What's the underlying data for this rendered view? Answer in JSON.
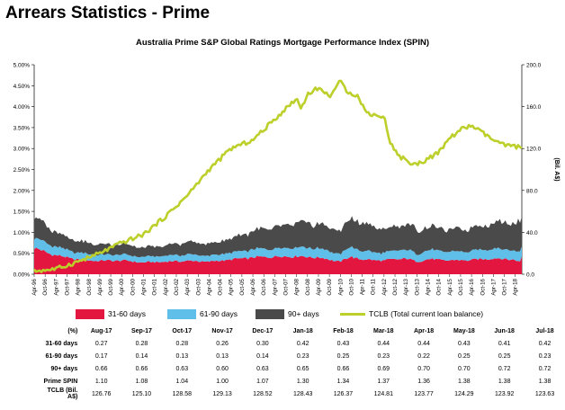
{
  "page": {
    "title": "Arrears Statistics - Prime"
  },
  "chart_data": {
    "type": "area",
    "title": "Australia Prime S&P Global Ratings Mortgage Performance Index (SPIN)",
    "y_left": {
      "ticks": [
        "0.00%",
        "0.50%",
        "1.00%",
        "1.50%",
        "2.00%",
        "2.50%",
        "3.00%",
        "3.50%",
        "4.00%",
        "4.50%",
        "5.00%"
      ],
      "range": [
        0,
        5
      ]
    },
    "y_right": {
      "label": "(Bil. A$)",
      "ticks": [
        "0.0",
        "40.0",
        "80.0",
        "120.0",
        "160.0",
        "200.0"
      ],
      "range": [
        0,
        200
      ]
    },
    "x_tick_labels": [
      "Apr-96",
      "Oct-96",
      "Apr-97",
      "Oct-97",
      "Apr-98",
      "Oct-98",
      "Apr-99",
      "Oct-99",
      "Apr-00",
      "Oct-00",
      "Apr-01",
      "Oct-01",
      "Apr-02",
      "Oct-02",
      "Apr-03",
      "Oct-03",
      "Apr-04",
      "Oct-04",
      "Apr-05",
      "Oct-05",
      "Apr-06",
      "Oct-06",
      "Apr-07",
      "Oct-07",
      "Apr-08",
      "Oct-08",
      "Apr-09",
      "Oct-09",
      "Apr-10",
      "Oct-10",
      "Apr-11",
      "Oct-11",
      "Apr-12",
      "Oct-12",
      "Apr-13",
      "Oct-13",
      "Apr-14",
      "Oct-14",
      "Apr-15",
      "Oct-15",
      "Apr-16",
      "Oct-16",
      "Apr-17",
      "Oct-17",
      "Apr-18"
    ],
    "x_start": "Apr-96",
    "x_end": "Jul-18",
    "series": [
      {
        "name": "31-60 days",
        "color": "#e3163f",
        "stack": true,
        "anchors": [
          [
            0,
            0.62
          ],
          [
            1,
            0.45
          ],
          [
            2,
            0.35
          ],
          [
            3,
            0.32
          ],
          [
            4,
            0.33
          ],
          [
            5,
            0.28
          ],
          [
            6,
            0.3
          ],
          [
            7,
            0.32
          ],
          [
            8,
            0.3
          ],
          [
            9,
            0.35
          ],
          [
            10,
            0.4
          ],
          [
            11,
            0.42
          ],
          [
            12,
            0.43
          ],
          [
            13,
            0.4
          ],
          [
            14,
            0.3
          ],
          [
            14.5,
            0.42
          ],
          [
            15,
            0.35
          ],
          [
            16,
            0.33
          ],
          [
            17,
            0.38
          ],
          [
            17.5,
            0.3
          ],
          [
            18,
            0.36
          ],
          [
            19,
            0.33
          ],
          [
            20,
            0.34
          ],
          [
            21,
            0.38
          ],
          [
            22,
            0.35
          ],
          [
            22.2,
            0.27
          ],
          [
            22.3,
            0.42
          ]
        ]
      },
      {
        "name": "61-90 days",
        "color": "#5fbfe9",
        "stack": true,
        "anchors": [
          [
            0,
            0.25
          ],
          [
            1,
            0.2
          ],
          [
            2,
            0.16
          ],
          [
            3,
            0.14
          ],
          [
            4,
            0.14
          ],
          [
            5,
            0.13
          ],
          [
            6,
            0.14
          ],
          [
            7,
            0.15
          ],
          [
            8,
            0.14
          ],
          [
            9,
            0.16
          ],
          [
            10,
            0.19
          ],
          [
            11,
            0.2
          ],
          [
            12,
            0.22
          ],
          [
            13,
            0.22
          ],
          [
            14,
            0.18
          ],
          [
            14.5,
            0.24
          ],
          [
            15,
            0.2
          ],
          [
            16,
            0.18
          ],
          [
            17,
            0.22
          ],
          [
            17.5,
            0.18
          ],
          [
            18,
            0.22
          ],
          [
            19,
            0.2
          ],
          [
            20,
            0.21
          ],
          [
            21,
            0.24
          ],
          [
            22,
            0.23
          ],
          [
            22.2,
            0.23
          ],
          [
            22.3,
            0.23
          ]
        ]
      },
      {
        "name": "90+ days",
        "color": "#4a4a4a",
        "stack": true,
        "anchors": [
          [
            0,
            0.5
          ],
          [
            1,
            0.35
          ],
          [
            2,
            0.28
          ],
          [
            3,
            0.25
          ],
          [
            4,
            0.25
          ],
          [
            5,
            0.22
          ],
          [
            6,
            0.24
          ],
          [
            7,
            0.3
          ],
          [
            8,
            0.28
          ],
          [
            9,
            0.34
          ],
          [
            10,
            0.44
          ],
          [
            11,
            0.5
          ],
          [
            12,
            0.58
          ],
          [
            13,
            0.58
          ],
          [
            14,
            0.56
          ],
          [
            14.5,
            0.68
          ],
          [
            15,
            0.68
          ],
          [
            16,
            0.55
          ],
          [
            17,
            0.6
          ],
          [
            17.5,
            0.58
          ],
          [
            18,
            0.56
          ],
          [
            19,
            0.52
          ],
          [
            20,
            0.55
          ],
          [
            21,
            0.62
          ],
          [
            22,
            0.68
          ],
          [
            22.2,
            0.72
          ],
          [
            22.3,
            0.72
          ]
        ]
      },
      {
        "name": "TCLB (Total current loan balance)",
        "color": "#bccf2a",
        "axis": "right",
        "anchors": [
          [
            0,
            3
          ],
          [
            1,
            5
          ],
          [
            2,
            12
          ],
          [
            3,
            20
          ],
          [
            4,
            30
          ],
          [
            5,
            38
          ],
          [
            6,
            55
          ],
          [
            7,
            75
          ],
          [
            8,
            100
          ],
          [
            9,
            120
          ],
          [
            10,
            128
          ],
          [
            11,
            148
          ],
          [
            12,
            168
          ],
          [
            12.2,
            158
          ],
          [
            12.5,
            172
          ],
          [
            13,
            178
          ],
          [
            13.5,
            170
          ],
          [
            14,
            184
          ],
          [
            14.3,
            175
          ],
          [
            14.8,
            170
          ],
          [
            15.2,
            154
          ],
          [
            16,
            150
          ],
          [
            16.3,
            125
          ],
          [
            16.7,
            112
          ],
          [
            17,
            110
          ],
          [
            17.3,
            104
          ],
          [
            17.8,
            108
          ],
          [
            18.5,
            116
          ],
          [
            19,
            130
          ],
          [
            19.5,
            138
          ],
          [
            20,
            142
          ],
          [
            20.5,
            135
          ],
          [
            21,
            128
          ],
          [
            21.5,
            123
          ],
          [
            22,
            122
          ],
          [
            22.3,
            121
          ]
        ]
      }
    ]
  },
  "legend": [
    {
      "label": "31-60 days",
      "color": "#e3163f"
    },
    {
      "label": "61-90 days",
      "color": "#5fbfe9"
    },
    {
      "label": "90+ days",
      "color": "#4a4a4a"
    },
    {
      "label": "TCLB (Total current loan balance)",
      "color": "#bccf2a"
    }
  ],
  "table": {
    "header": [
      "(%)",
      "Aug-17",
      "Sep-17",
      "Oct-17",
      "Nov-17",
      "Dec-17",
      "Jan-18",
      "Feb-18",
      "Mar-18",
      "Apr-18",
      "May-18",
      "Jun-18",
      "Jul-18"
    ],
    "rows": [
      [
        "31-60 days",
        "0.27",
        "0.28",
        "0.28",
        "0.26",
        "0.30",
        "0.42",
        "0.43",
        "0.44",
        "0.44",
        "0.43",
        "0.41",
        "0.42"
      ],
      [
        "61-90 days",
        "0.17",
        "0.14",
        "0.13",
        "0.13",
        "0.14",
        "0.23",
        "0.25",
        "0.23",
        "0.22",
        "0.25",
        "0.25",
        "0.23"
      ],
      [
        "90+ days",
        "0.66",
        "0.66",
        "0.63",
        "0.60",
        "0.63",
        "0.65",
        "0.66",
        "0.69",
        "0.70",
        "0.70",
        "0.72",
        "0.72"
      ],
      [
        "Prime SPIN",
        "1.10",
        "1.08",
        "1.04",
        "1.00",
        "1.07",
        "1.30",
        "1.34",
        "1.37",
        "1.36",
        "1.38",
        "1.38",
        "1.38"
      ],
      [
        "TCLB (Bil. A$)",
        "126.76",
        "125.10",
        "128.58",
        "129.13",
        "128.52",
        "128.43",
        "126.37",
        "124.81",
        "123.77",
        "124.29",
        "123.92",
        "123.63"
      ]
    ]
  }
}
